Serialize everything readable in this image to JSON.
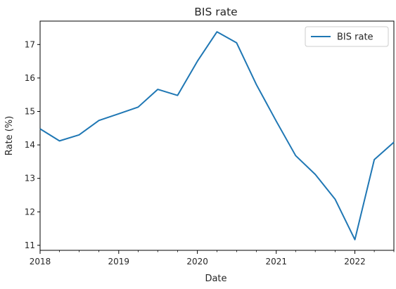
{
  "chart_data": {
    "type": "line",
    "title": "BIS rate",
    "xlabel": "Date",
    "ylabel": "Rate (%)",
    "xlim": [
      "2018-01-01",
      "2022-07-01"
    ],
    "ylim": [
      10.85,
      17.7
    ],
    "x_ticks": [
      "2018",
      "2019",
      "2020",
      "2021",
      "2022"
    ],
    "y_ticks": [
      "11",
      "12",
      "13",
      "14",
      "15",
      "16",
      "17"
    ],
    "grid": false,
    "legend_position": "top-right",
    "series": [
      {
        "name": "BIS rate",
        "color": "#1f77b4",
        "x": [
          "2018-01-01",
          "2018-04-01",
          "2018-07-01",
          "2018-10-01",
          "2019-01-01",
          "2019-04-01",
          "2019-07-01",
          "2019-10-01",
          "2020-01-01",
          "2020-04-01",
          "2020-07-01",
          "2020-10-01",
          "2021-01-01",
          "2021-04-01",
          "2021-07-01",
          "2021-10-01",
          "2022-01-01",
          "2022-04-01",
          "2022-07-01"
        ],
        "values": [
          14.48,
          14.12,
          14.3,
          14.73,
          14.93,
          15.13,
          15.66,
          15.48,
          16.5,
          17.38,
          17.05,
          15.8,
          14.71,
          13.68,
          13.12,
          12.38,
          11.17,
          13.56,
          14.08
        ]
      }
    ]
  }
}
